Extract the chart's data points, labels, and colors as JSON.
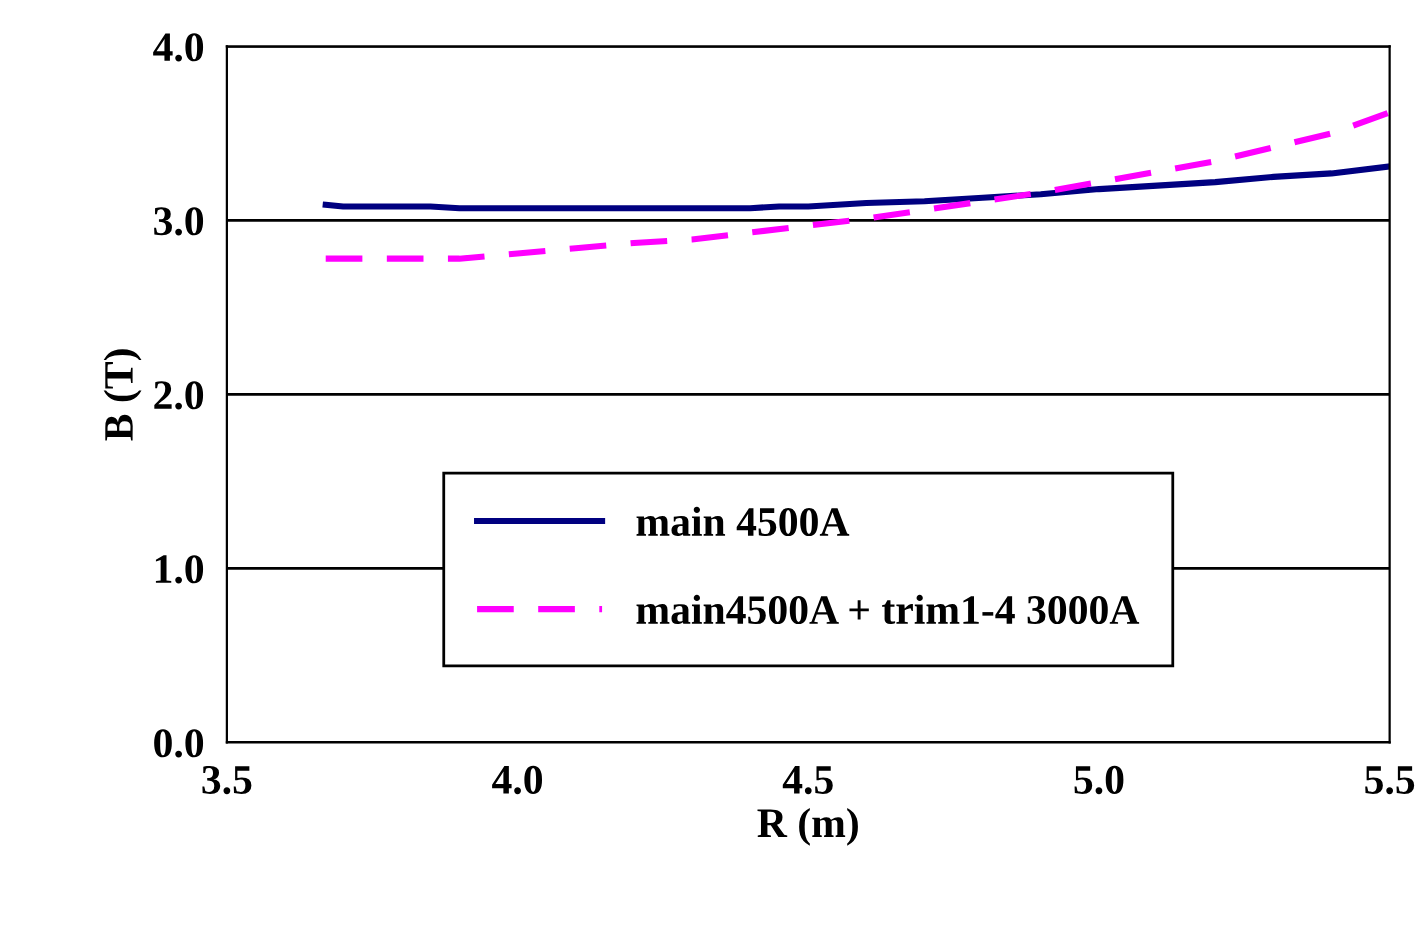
{
  "chart_data": {
    "type": "line",
    "xlabel": "R (m)",
    "ylabel": "B (T)",
    "xlim": [
      3.5,
      5.5
    ],
    "xticks": [
      {
        "value": 3.5,
        "label": "3.5"
      },
      {
        "value": 4.0,
        "label": "4.0"
      },
      {
        "value": 4.5,
        "label": "4.5"
      },
      {
        "value": 5.0,
        "label": "5.0"
      },
      {
        "value": 5.5,
        "label": "5.5"
      }
    ],
    "ylim": [
      0,
      4
    ],
    "yticks": [
      {
        "value": 0,
        "label": "0.0"
      },
      {
        "value": 1,
        "label": "1.0"
      },
      {
        "value": 2,
        "label": "2.0"
      },
      {
        "value": 3,
        "label": "3.0"
      },
      {
        "value": 4,
        "label": "4.0"
      }
    ],
    "grid": "y",
    "legend": "bottom",
    "marker": "none",
    "series": [
      {
        "name": "main 4500A",
        "color": "#000080",
        "line_style": "solid",
        "x": [
          3.67,
          3.7,
          3.85,
          3.9,
          4.4,
          4.45,
          4.5,
          4.55,
          4.6,
          4.7,
          4.8,
          4.9,
          5.0,
          5.1,
          5.2,
          5.3,
          5.4,
          5.5
        ],
        "values": [
          3.09,
          3.08,
          3.08,
          3.07,
          3.07,
          3.08,
          3.08,
          3.09,
          3.1,
          3.11,
          3.13,
          3.15,
          3.18,
          3.2,
          3.22,
          3.25,
          3.27,
          3.31
        ]
      },
      {
        "name": "main4500A + trim1-4 3000A",
        "color": "#ff00ff",
        "line_style": "dashed",
        "x": [
          3.67,
          3.9,
          4.0,
          4.1,
          4.2,
          4.3,
          4.4,
          4.5,
          4.6,
          4.7,
          4.8,
          4.9,
          5.0,
          5.1,
          5.2,
          5.3,
          5.4,
          5.5
        ],
        "values": [
          2.78,
          2.78,
          2.81,
          2.84,
          2.87,
          2.89,
          2.93,
          2.97,
          3.01,
          3.06,
          3.11,
          3.16,
          3.22,
          3.28,
          3.34,
          3.42,
          3.5,
          3.62
        ]
      }
    ]
  }
}
